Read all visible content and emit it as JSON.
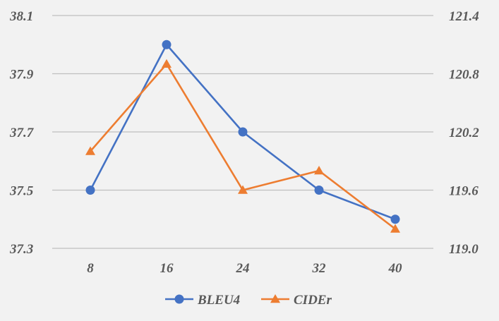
{
  "chart_data": {
    "type": "line",
    "title": "",
    "x": [
      "8",
      "16",
      "24",
      "32",
      "40"
    ],
    "y_left": {
      "ticks": [
        "37.3",
        "37.5",
        "37.7",
        "37.9",
        "38.1"
      ],
      "lim": [
        37.3,
        38.1
      ]
    },
    "y_right": {
      "ticks": [
        "119.0",
        "119.6",
        "120.2",
        "120.8",
        "121.4"
      ],
      "lim": [
        119.0,
        121.4
      ]
    },
    "grid": true,
    "legend": "bottom",
    "series": [
      {
        "name": "BLEU4",
        "axis": "left",
        "color": "#4472c4",
        "marker": "circle",
        "values": [
          37.5,
          38.0,
          37.7,
          37.5,
          37.4
        ]
      },
      {
        "name": "CIDEr",
        "axis": "right",
        "color": "#ed7d31",
        "marker": "triangle",
        "values": [
          120.0,
          120.9,
          119.6,
          119.8,
          119.2
        ]
      }
    ]
  }
}
